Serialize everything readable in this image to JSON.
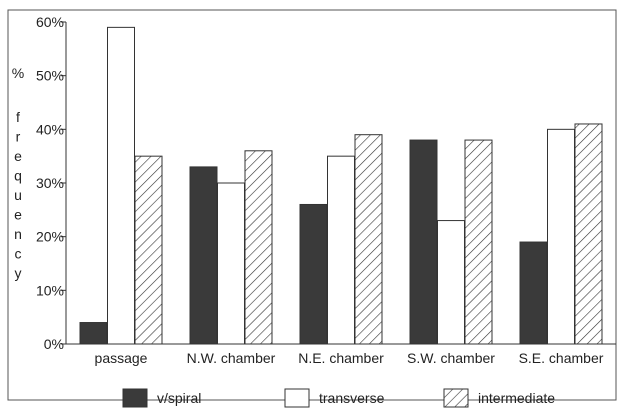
{
  "chart_data": {
    "type": "bar",
    "ylabel": "% frequency",
    "ylim": [
      0,
      60
    ],
    "yticks": [
      "0%",
      "10%",
      "20%",
      "30%",
      "40%",
      "50%",
      "60%"
    ],
    "categories": [
      "passage",
      "N.W. chamber",
      "N.E. chamber",
      "S.W. chamber",
      "S.E. chamber"
    ],
    "series": [
      {
        "name": "v/spiral",
        "values": [
          4,
          33,
          26,
          38,
          19
        ],
        "fill": "dark"
      },
      {
        "name": "transverse",
        "values": [
          59,
          30,
          35,
          23,
          40
        ],
        "fill": "white"
      },
      {
        "name": "intermediate",
        "values": [
          35,
          36,
          39,
          38,
          41
        ],
        "fill": "hatched"
      }
    ],
    "legend_position": "bottom",
    "grid": false
  },
  "colors": {
    "dark": "#3a3a3a",
    "white": "#ffffff",
    "stroke": "#333333",
    "hatch": "#333333"
  }
}
